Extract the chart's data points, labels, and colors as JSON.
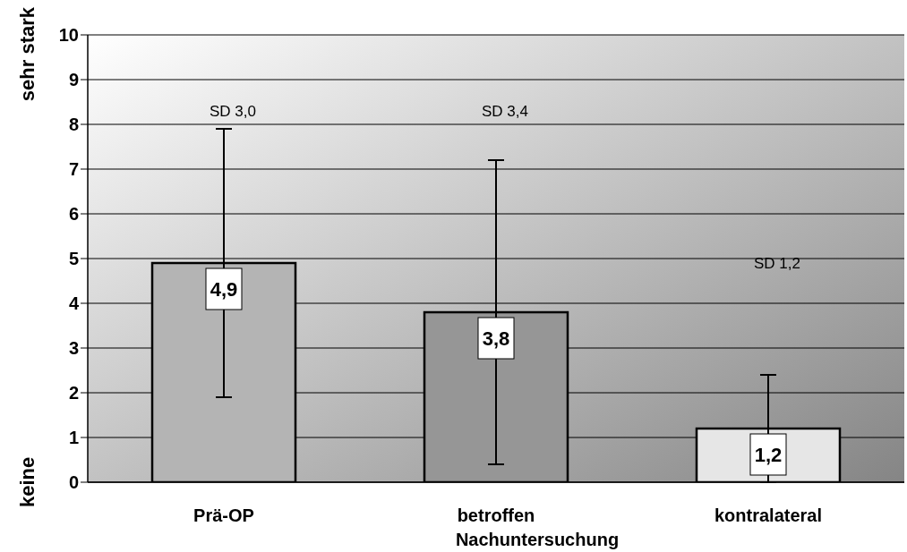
{
  "chart_data": {
    "type": "bar",
    "xlabel": "Nachuntersuchung",
    "categories": [
      "Prä-OP",
      "betroffen",
      "kontralateral"
    ],
    "values": [
      4.9,
      3.8,
      1.2
    ],
    "value_labels": [
      "4,9",
      "3,8",
      "1,2"
    ],
    "errors": [
      3.0,
      3.4,
      1.2
    ],
    "colors": [
      "#b4b4b4",
      "#969696",
      "#e6e6e6"
    ],
    "ylim": [
      0,
      10
    ],
    "yticks": [
      0,
      1,
      2,
      3,
      4,
      5,
      6,
      7,
      8,
      9,
      10
    ],
    "grid": "y",
    "annotations": [
      "keine",
      "sehr stark",
      "SD 3,0",
      "SD 3,4",
      "SD 1,2"
    ]
  }
}
